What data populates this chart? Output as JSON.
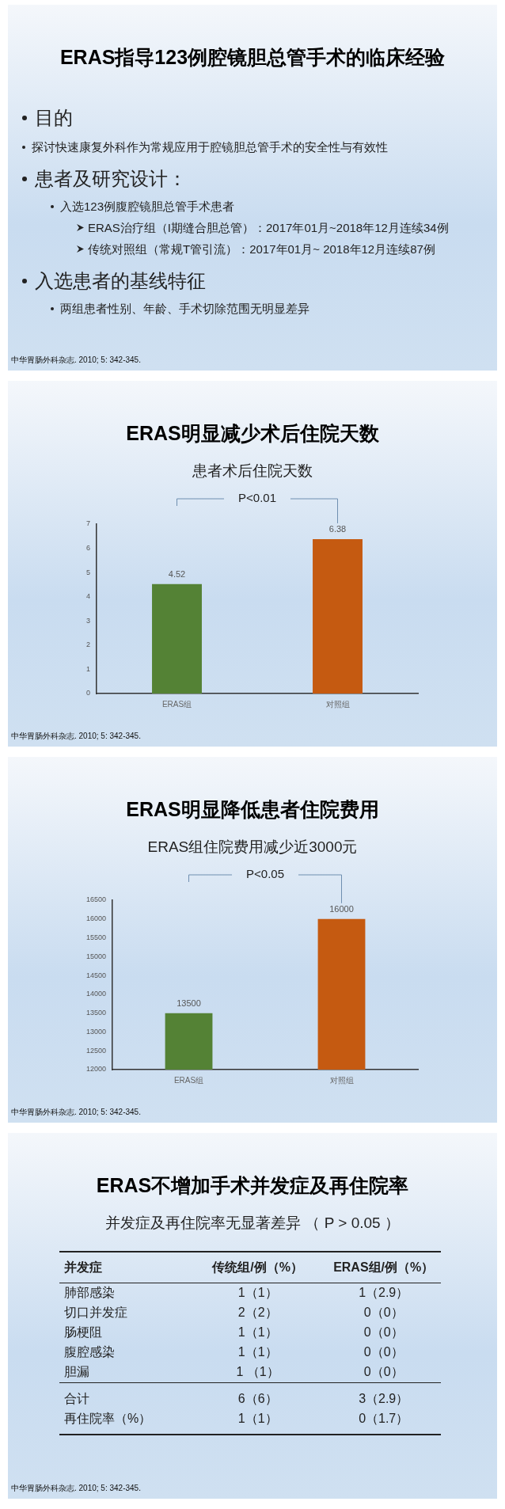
{
  "chart_data": [
    {
      "type": "other",
      "title": "ERAS指导123例腔镜胆总管手术的临床经验",
      "annotations": [
        "目的",
        "探讨快速康复外科作为常规应用于腔镜胆总管手术的安全性与有效性",
        "患者及研究设计：",
        "入选123例腹腔镜胆总管手术患者",
        "ERAS治疗组（I期缝合胆总管）：2017年01月~2018年12月连续34例",
        "传统对照组（常规T管引流）：2017年01月~ 2018年12月连续87例",
        "入选患者的基线特征",
        "两组患者性别、年龄、手术切除范围无明显差异",
        "中华胃肠外科杂志. 2010; 5: 342-345."
      ]
    },
    {
      "type": "bar",
      "title": "ERAS明显减少术后住院天数",
      "subtitle": "患者术后住院天数",
      "categories": [
        "ERAS组",
        "对照组"
      ],
      "values": [
        4.52,
        6.38
      ],
      "colors": [
        "#548235",
        "#c55a11"
      ],
      "ylim": [
        0,
        7
      ],
      "yticks": [
        0,
        1,
        2,
        3,
        4,
        5,
        6,
        7
      ],
      "grid": false,
      "data_labels": true,
      "annotations": [
        "P<0.01",
        "中华胃肠外科杂志. 2010; 5: 342-345."
      ]
    },
    {
      "type": "bar",
      "title": "ERAS明显降低患者住院费用",
      "subtitle": "ERAS组住院费用减少近3000元",
      "categories": [
        "ERAS组",
        "对照组"
      ],
      "values": [
        13500,
        16000
      ],
      "colors": [
        "#548235",
        "#c55a11"
      ],
      "ylim": [
        12000,
        16500
      ],
      "yticks": [
        12000,
        12500,
        13000,
        13500,
        14000,
        14500,
        15000,
        15500,
        16000,
        16500
      ],
      "grid": false,
      "data_labels": true,
      "annotations": [
        "P<0.05",
        "中华胃肠外科杂志. 2010; 5: 342-345."
      ]
    },
    {
      "type": "other",
      "title": "ERAS不增加手术并发症及再住院率",
      "subtitle": "并发症及再住院率无显著差异 （ P > 0.05 ）",
      "annotations": [
        "并发症",
        "传统组/例（%）",
        "ERAS组/例（%）",
        "肺部感染",
        "1（1）",
        "1（2.9）",
        "切口并发症",
        "2（2）",
        "0（0）",
        "肠梗阻",
        "1（1）",
        "0（0）",
        "腹腔感染",
        "1（1）",
        "0（0）",
        "胆漏",
        "1 （1）",
        "0（0）",
        "合计",
        "6（6）",
        "3（2.9）",
        "再住院率（%）",
        "1（1）",
        "0（1.7）",
        "中华胃肠外科杂志. 2010; 5: 342-345."
      ]
    }
  ]
}
